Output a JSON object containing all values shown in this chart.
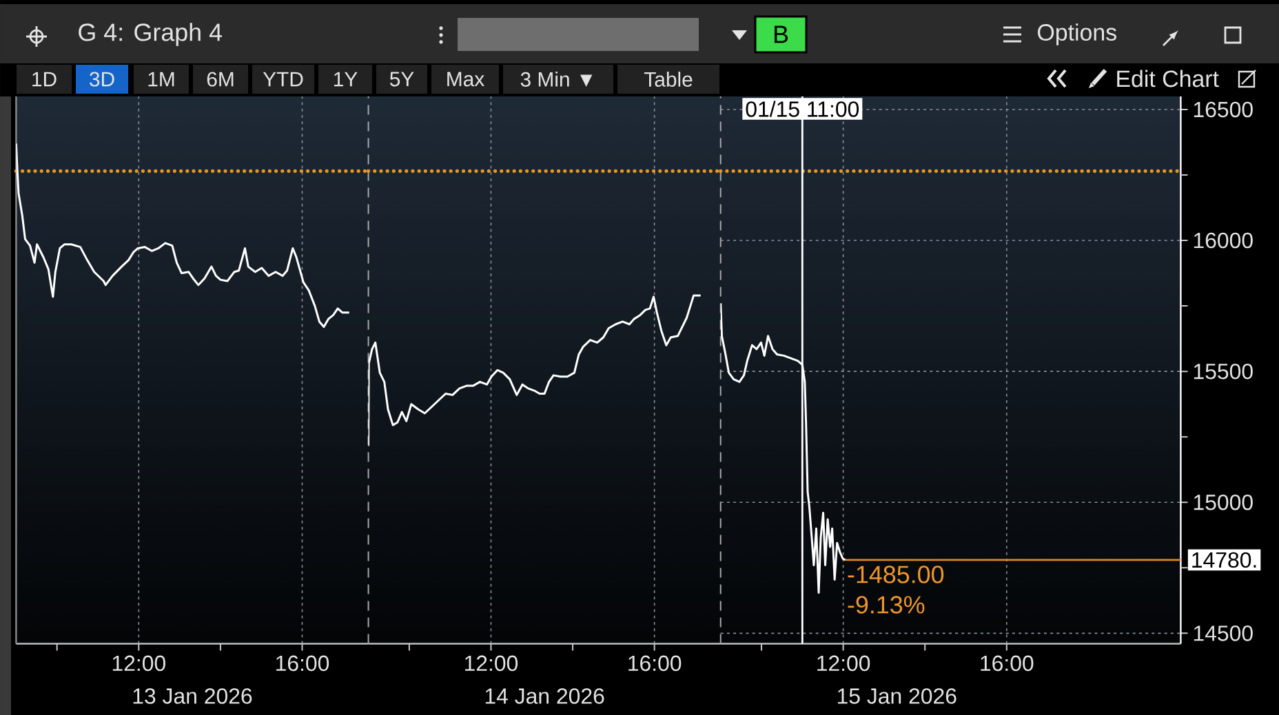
{
  "chart_data": [
    {
      "type": "other",
      "title": "G 4: Graph 4",
      "annotations": [
        "B",
        "Options",
        "1D",
        "3D",
        "1M",
        "6M",
        "YTD",
        "1Y",
        "5Y",
        "Max",
        "3 Min ▼",
        "Table",
        "Edit Chart"
      ]
    },
    {
      "type": "line",
      "color": "#ffffff",
      "xlabel": "13 Jan 2026",
      "xlim": [
        9,
        17.62
      ],
      "ylim": [
        14460,
        16550
      ],
      "grid": true,
      "tick_labels": "x",
      "xticks": [
        {
          "value": 10,
          "label": null
        },
        {
          "value": 12,
          "label": "12:00"
        },
        {
          "value": 14,
          "label": null
        },
        {
          "value": 16,
          "label": "16:00"
        }
      ],
      "yticks": [
        14500,
        15000,
        15500,
        16000,
        16500
      ],
      "ref_lines": [
        {
          "axis": "y",
          "value": 16265,
          "color": "#e8961e",
          "line_style": "dotted"
        }
      ],
      "x": [
        9.0,
        9.03,
        9.06,
        9.15,
        9.22,
        9.34,
        9.45,
        9.51,
        9.67,
        9.79,
        9.9,
        9.96,
        10.07,
        10.18,
        10.35,
        10.57,
        10.74,
        10.91,
        11.14,
        11.19,
        11.36,
        11.58,
        11.75,
        11.87,
        11.98,
        12.15,
        12.32,
        12.48,
        12.65,
        12.82,
        12.93,
        13.05,
        13.22,
        13.33,
        13.46,
        13.61,
        13.78,
        13.89,
        14.0,
        14.17,
        14.34,
        14.45,
        14.6,
        14.68,
        14.85,
        15.01,
        15.18,
        15.35,
        15.52,
        15.63,
        15.77,
        15.86,
        16.03,
        16.16,
        16.31,
        16.42,
        16.53,
        16.64,
        16.76,
        16.87,
        16.98,
        17.15
      ],
      "values": [
        16370,
        16265,
        16180,
        16095,
        16005,
        15980,
        15915,
        15985,
        15935,
        15890,
        15785,
        15880,
        15970,
        15985,
        15985,
        15975,
        15925,
        15880,
        15845,
        15830,
        15865,
        15900,
        15925,
        15955,
        15970,
        15975,
        15960,
        15970,
        15990,
        15980,
        15915,
        15875,
        15880,
        15855,
        15830,
        15855,
        15900,
        15865,
        15850,
        15845,
        15880,
        15885,
        15970,
        15900,
        15880,
        15895,
        15865,
        15880,
        15865,
        15885,
        15970,
        15935,
        15840,
        15810,
        15750,
        15690,
        15670,
        15700,
        15715,
        15740,
        15725,
        15725
      ]
    },
    {
      "type": "line",
      "color": "#ffffff",
      "xlabel": "14 Jan 2026",
      "xlim": [
        9,
        17.62
      ],
      "ylim": [
        14460,
        16550
      ],
      "grid": true,
      "tick_labels": "x",
      "xticks": [
        {
          "value": 10,
          "label": null
        },
        {
          "value": 12,
          "label": "12:00"
        },
        {
          "value": 14,
          "label": null
        },
        {
          "value": 16,
          "label": "16:00"
        }
      ],
      "yticks": [
        14500,
        15000,
        15500,
        16000,
        16500
      ],
      "ref_lines": [
        {
          "axis": "y",
          "value": 16265,
          "color": "#e8961e",
          "line_style": "dotted"
        }
      ],
      "x": [
        9.0,
        9.01,
        9.09,
        9.17,
        9.28,
        9.39,
        9.48,
        9.6,
        9.71,
        9.82,
        9.93,
        10.05,
        10.22,
        10.38,
        10.55,
        10.72,
        10.89,
        11.06,
        11.23,
        11.4,
        11.56,
        11.73,
        11.9,
        12.01,
        12.16,
        12.3,
        12.46,
        12.63,
        12.77,
        12.91,
        13.08,
        13.19,
        13.31,
        13.42,
        13.53,
        13.7,
        13.87,
        14.04,
        14.15,
        14.26,
        14.43,
        14.6,
        14.75,
        14.88,
        15.05,
        15.22,
        15.39,
        15.5,
        15.65,
        15.78,
        15.89,
        15.98,
        16.06,
        16.17,
        16.29,
        16.4,
        16.57,
        16.68,
        16.79,
        16.88,
        16.96,
        17.13
      ],
      "values": [
        15215,
        15530,
        15585,
        15610,
        15495,
        15460,
        15355,
        15295,
        15305,
        15345,
        15310,
        15375,
        15355,
        15340,
        15365,
        15390,
        15415,
        15410,
        15435,
        15445,
        15445,
        15460,
        15450,
        15480,
        15505,
        15495,
        15470,
        15410,
        15450,
        15435,
        15425,
        15415,
        15415,
        15460,
        15485,
        15480,
        15480,
        15495,
        15565,
        15595,
        15620,
        15610,
        15630,
        15665,
        15680,
        15690,
        15680,
        15700,
        15715,
        15735,
        15740,
        15785,
        15725,
        15655,
        15600,
        15630,
        15635,
        15670,
        15705,
        15750,
        15790,
        15790
      ]
    },
    {
      "type": "line",
      "color": "#ffffff",
      "xlabel": "15 Jan 2026",
      "xlim": [
        9,
        20.26
      ],
      "ylim": [
        14460,
        16550
      ],
      "grid": true,
      "xticks": [
        {
          "value": 10,
          "label": null
        },
        {
          "value": 12,
          "label": "12:00"
        },
        {
          "value": 14,
          "label": null
        },
        {
          "value": 16,
          "label": "16:00"
        }
      ],
      "yticks": [
        14500,
        {
          "value": 14750,
          "label": null
        },
        15000,
        {
          "value": 15250,
          "label": null
        },
        15500,
        {
          "value": 15750,
          "label": null
        },
        16000,
        {
          "value": 16250,
          "label": null
        },
        16500
      ],
      "ref_lines": [
        {
          "axis": "y",
          "value": 16265,
          "color": "#e8961e",
          "line_style": "dotted"
        },
        {
          "axis": "y",
          "value": 14780,
          "label": "14780.",
          "color": "#d98b1c"
        },
        {
          "axis": "x",
          "value": 11,
          "label": "01/15 11:00",
          "color": "#ffffff"
        }
      ],
      "annotations": [
        {
          "text": "-1485.00",
          "x": 12.05,
          "y": 14780
        },
        {
          "text": "-9.13%",
          "x": 12.05,
          "y": 14780
        }
      ],
      "x": [
        9.0,
        9.03,
        9.12,
        9.2,
        9.32,
        9.46,
        9.57,
        9.65,
        9.77,
        9.88,
        9.99,
        10.07,
        10.16,
        10.27,
        10.38,
        10.55,
        10.72,
        10.89,
        11.0,
        11.06,
        11.09,
        11.13,
        11.17,
        11.23,
        11.28,
        11.34,
        11.4,
        11.45,
        11.51,
        11.56,
        11.62,
        11.68,
        11.73,
        11.79,
        11.85,
        11.92,
        11.99,
        12.05
      ],
      "values": [
        15760,
        15635,
        15565,
        15495,
        15470,
        15460,
        15485,
        15540,
        15600,
        15585,
        15610,
        15560,
        15635,
        15585,
        15565,
        15560,
        15550,
        15540,
        15525,
        15460,
        15305,
        15040,
        14985,
        14865,
        14760,
        14900,
        14655,
        14865,
        14960,
        14760,
        14935,
        14830,
        14900,
        14705,
        14845,
        14810,
        14785,
        14780
      ]
    }
  ]
}
